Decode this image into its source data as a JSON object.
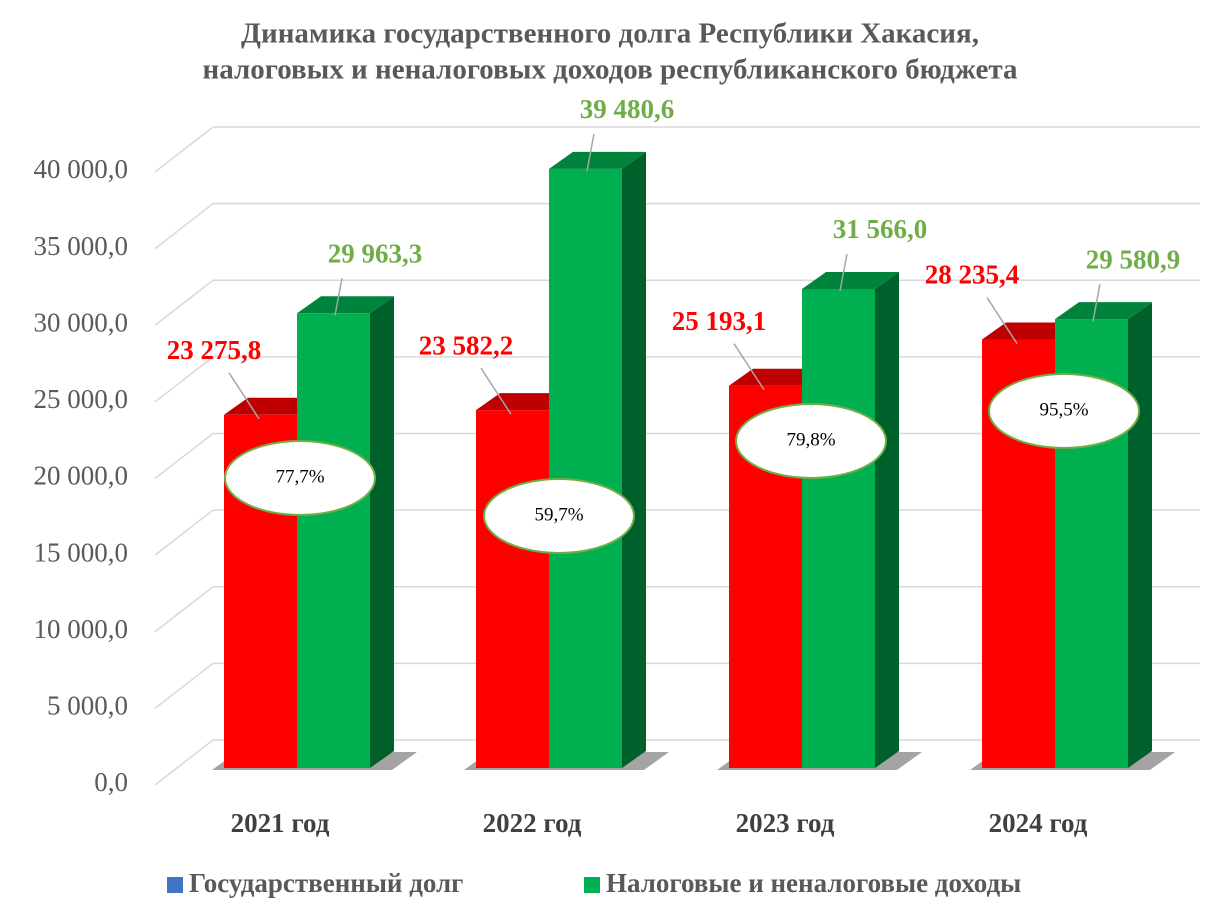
{
  "chart_data": {
    "type": "bar3d",
    "title": [
      "Динамика государственного долга Республики Хакасия,",
      "налоговых и неналоговых доходов республиканского бюджета"
    ],
    "categories": [
      "2021 год",
      "2022 год",
      "2023 год",
      "2024 год"
    ],
    "series": [
      {
        "name": "Государственный долг",
        "color": "#ff0000",
        "legend_color": "#4472c4",
        "label_color": "#ff0000",
        "values": [
          23275.8,
          23582.2,
          25193.1,
          28235.4
        ],
        "value_labels": [
          "23 275,8",
          "23 582,2",
          "25 193,1",
          "28 235,4"
        ]
      },
      {
        "name": "Налоговые и неналоговые доходы",
        "color": "#00b050",
        "legend_color": "#00b050",
        "label_color": "#70ad47",
        "values": [
          29963.3,
          39480.6,
          31566.0,
          29580.9
        ],
        "value_labels": [
          "29 963,3",
          "39 480,6",
          "31 566,0",
          "29 580,9"
        ]
      }
    ],
    "ratios": {
      "values": [
        77.7,
        59.7,
        79.8,
        95.5
      ],
      "value_labels": [
        "77,7%",
        "59,7%",
        "79,8%",
        "95,5%"
      ]
    },
    "ylim": [
      0,
      40000
    ],
    "yticks": [
      {
        "value": 0,
        "label": "0,0"
      },
      {
        "value": 5000,
        "label": "5 000,0"
      },
      {
        "value": 10000,
        "label": "10 000,0"
      },
      {
        "value": 15000,
        "label": "15 000,0"
      },
      {
        "value": 20000,
        "label": "20 000,0"
      },
      {
        "value": 25000,
        "label": "25 000,0"
      },
      {
        "value": 30000,
        "label": "30 000,0"
      },
      {
        "value": 35000,
        "label": "35 000,0"
      },
      {
        "value": 40000,
        "label": "40 000,0"
      }
    ],
    "grid": true,
    "legend": "bottom"
  }
}
